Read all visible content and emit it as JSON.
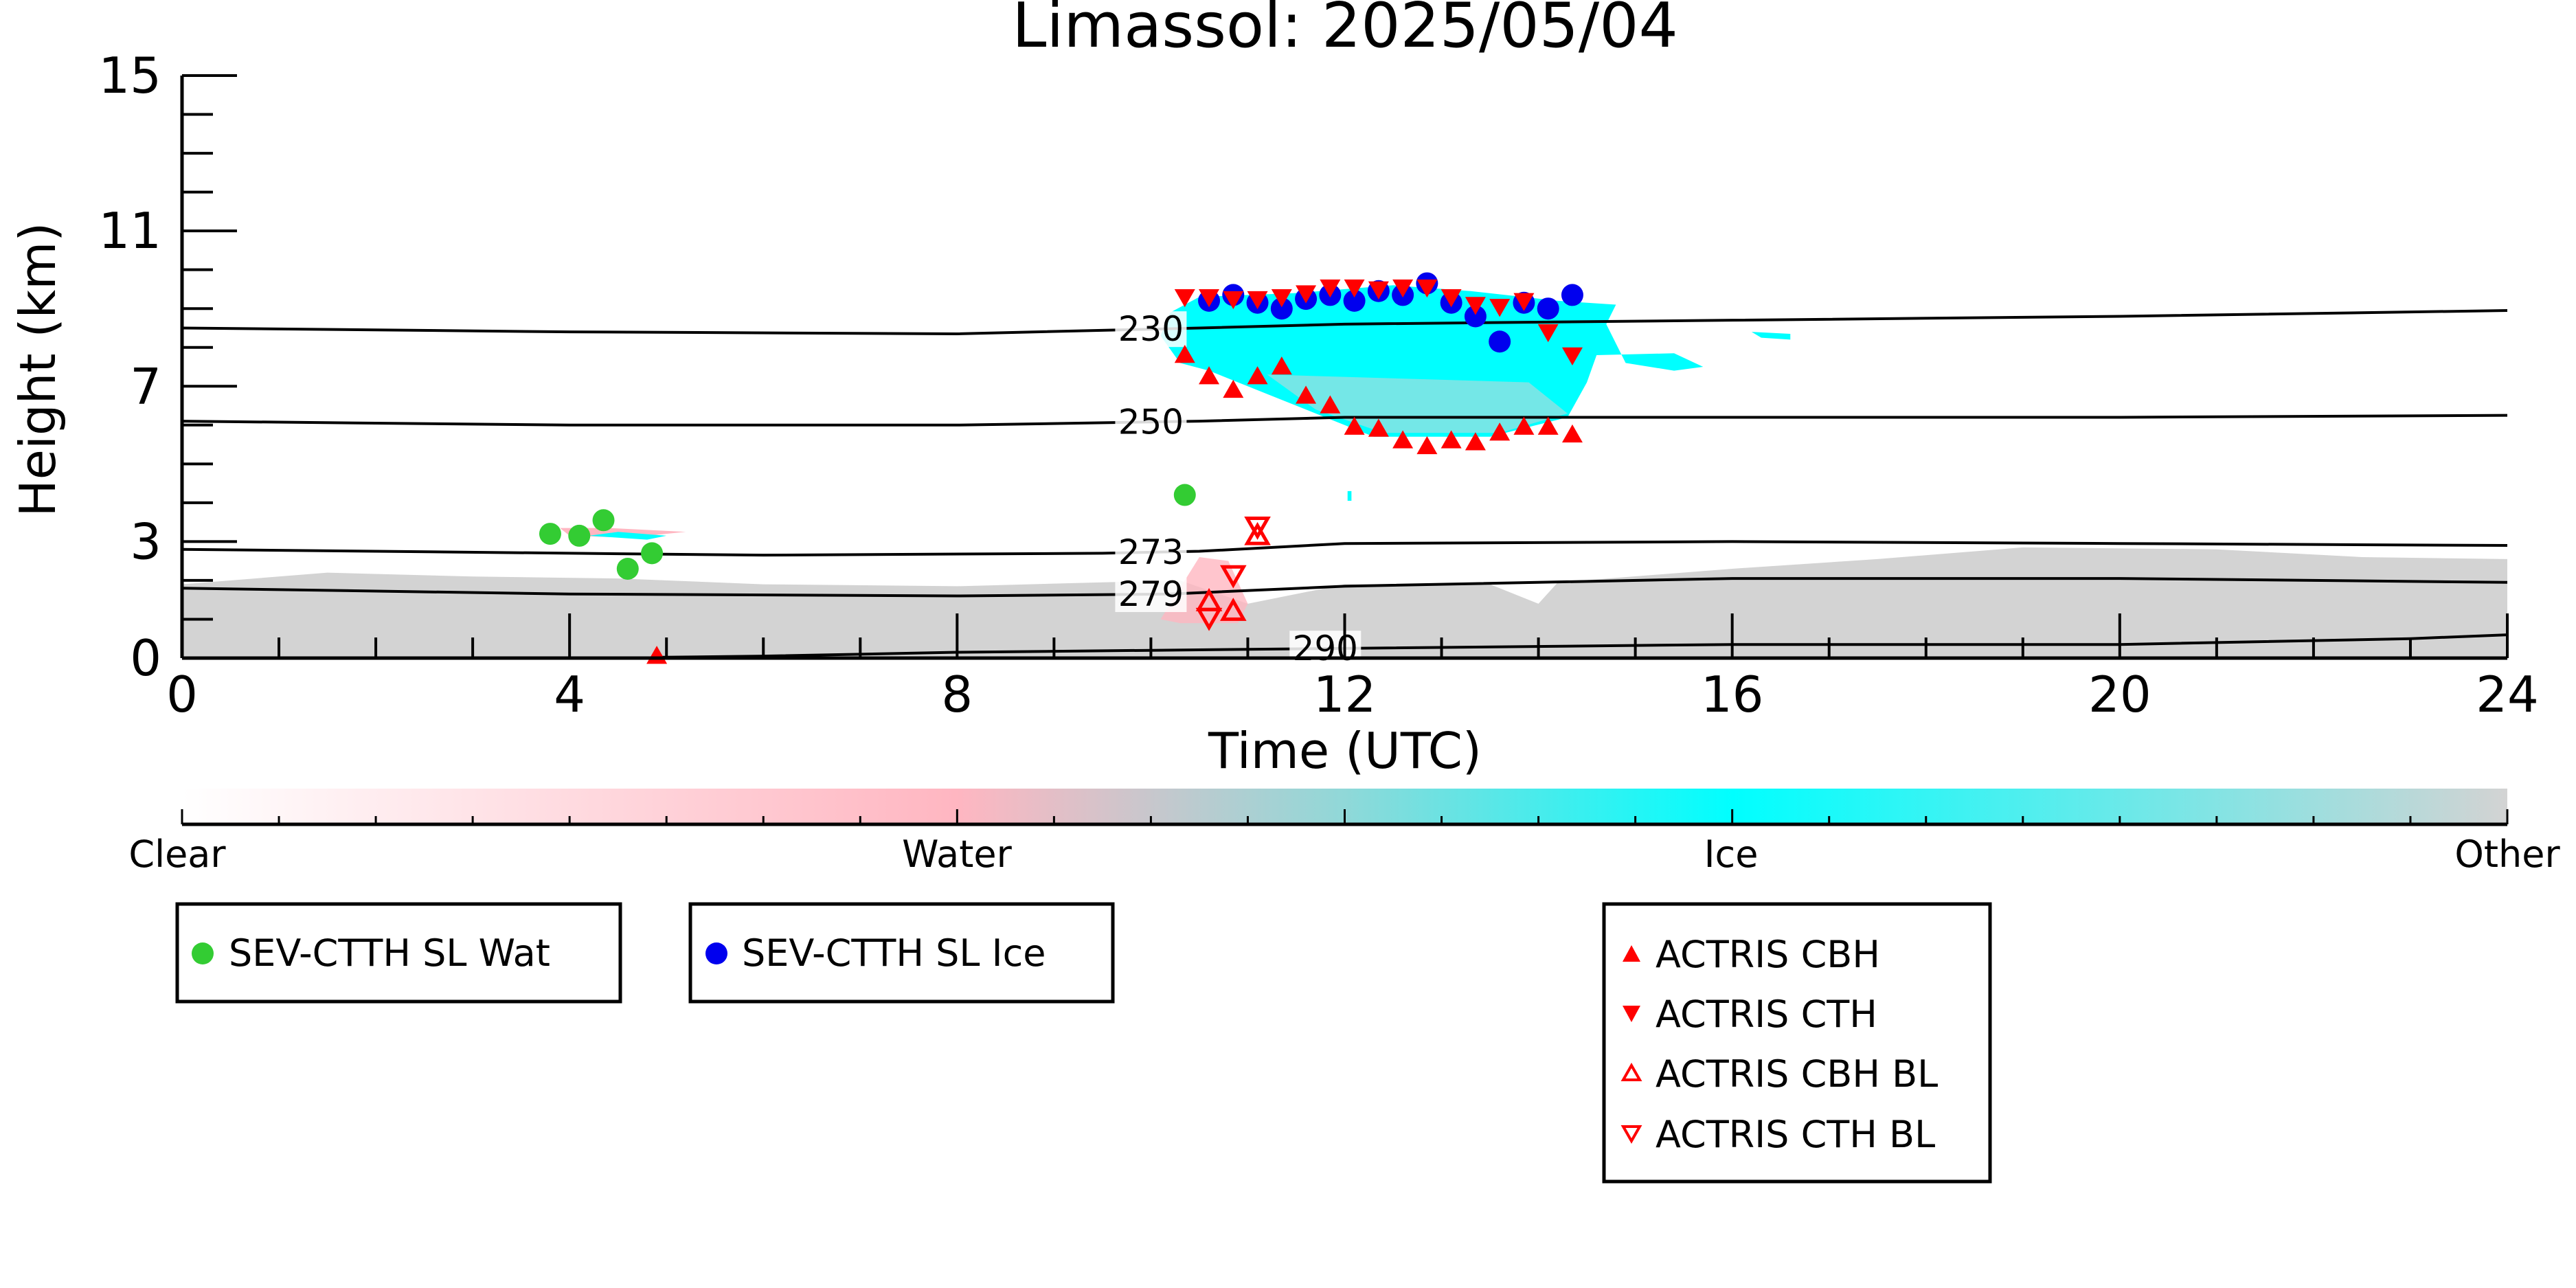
{
  "chart_data": {
    "type": "scatter",
    "title": "Limassol: 2025/05/04",
    "xlabel": "Time (UTC)",
    "ylabel": "Height (km)",
    "xlim": [
      0,
      24
    ],
    "ylim": [
      0,
      15
    ],
    "x_ticks": [
      0,
      4,
      8,
      12,
      16,
      20,
      24
    ],
    "y_ticks": [
      0,
      3,
      7,
      11,
      15
    ],
    "x_tick_labels": [
      "0",
      "4",
      "8",
      "12",
      "16",
      "20",
      "24"
    ],
    "y_tick_labels": [
      "0",
      "3",
      "7",
      "11",
      "15"
    ],
    "colors": {
      "water_marker": "#33cc33",
      "ice_marker": "#0000ee",
      "actris": "#ff0000",
      "clear": "#ffffff",
      "water": "#ffb6c1",
      "ice": "#00ffff",
      "other": "#d3d3d3"
    },
    "colorbar": {
      "labels": [
        "Clear",
        "Water",
        "Ice",
        "Other"
      ]
    },
    "isotherms": [
      {
        "label": "230",
        "label_x": 10.0,
        "points": [
          [
            0,
            8.5
          ],
          [
            4,
            8.4
          ],
          [
            8,
            8.35
          ],
          [
            10.5,
            8.5
          ],
          [
            12,
            8.6
          ],
          [
            16,
            8.7
          ],
          [
            20,
            8.8
          ],
          [
            24,
            8.95
          ]
        ]
      },
      {
        "label": "250",
        "label_x": 10.0,
        "points": [
          [
            0,
            6.1
          ],
          [
            4,
            6.0
          ],
          [
            8,
            6.0
          ],
          [
            10.5,
            6.1
          ],
          [
            12,
            6.2
          ],
          [
            16,
            6.2
          ],
          [
            20,
            6.2
          ],
          [
            24,
            6.25
          ]
        ]
      },
      {
        "label": "273",
        "label_x": 10.0,
        "points": [
          [
            0,
            2.8
          ],
          [
            2,
            2.75
          ],
          [
            6,
            2.65
          ],
          [
            9.5,
            2.7
          ],
          [
            10.5,
            2.75
          ],
          [
            12,
            2.95
          ],
          [
            16,
            3.0
          ],
          [
            20,
            2.95
          ],
          [
            24,
            2.9
          ]
        ]
      },
      {
        "label": "279",
        "label_x": 10.0,
        "points": [
          [
            0,
            1.8
          ],
          [
            4,
            1.65
          ],
          [
            8,
            1.6
          ],
          [
            10.2,
            1.65
          ],
          [
            12,
            1.85
          ],
          [
            16,
            2.05
          ],
          [
            20,
            2.05
          ],
          [
            24,
            1.95
          ]
        ]
      },
      {
        "label": "290",
        "label_x": 11.8,
        "points": [
          [
            4.9,
            0.02
          ],
          [
            6,
            0.05
          ],
          [
            8,
            0.15
          ],
          [
            10,
            0.2
          ],
          [
            12,
            0.25
          ],
          [
            16,
            0.35
          ],
          [
            20,
            0.35
          ],
          [
            23,
            0.5
          ],
          [
            24,
            0.6
          ]
        ]
      }
    ],
    "series": [
      {
        "name": "SEV-CTTH SL Wat",
        "marker": "circle",
        "color": "#33cc33",
        "points": [
          [
            3.8,
            3.2
          ],
          [
            4.1,
            3.15
          ],
          [
            4.35,
            3.55
          ],
          [
            4.6,
            2.3
          ],
          [
            4.85,
            2.7
          ],
          [
            10.35,
            4.2
          ]
        ]
      },
      {
        "name": "SEV-CTTH SL Ice",
        "marker": "circle",
        "color": "#0000ee",
        "points": [
          [
            10.6,
            9.2
          ],
          [
            10.85,
            9.35
          ],
          [
            11.1,
            9.15
          ],
          [
            11.35,
            9.0
          ],
          [
            11.6,
            9.25
          ],
          [
            11.85,
            9.35
          ],
          [
            12.1,
            9.2
          ],
          [
            12.35,
            9.45
          ],
          [
            12.6,
            9.35
          ],
          [
            12.85,
            9.65
          ],
          [
            13.1,
            9.15
          ],
          [
            13.35,
            8.8
          ],
          [
            13.6,
            8.15
          ],
          [
            13.85,
            9.15
          ],
          [
            14.1,
            9.0
          ],
          [
            14.35,
            9.35
          ]
        ]
      },
      {
        "name": "ACTRIS CBH",
        "marker": "triangle-up",
        "color": "#ff0000",
        "filled": true,
        "points": [
          [
            4.9,
            0.05
          ],
          [
            10.35,
            7.8
          ],
          [
            10.6,
            7.25
          ],
          [
            10.85,
            6.9
          ],
          [
            11.1,
            7.25
          ],
          [
            11.35,
            7.5
          ],
          [
            11.6,
            6.75
          ],
          [
            11.85,
            6.5
          ],
          [
            12.1,
            5.95
          ],
          [
            12.35,
            5.9
          ],
          [
            12.6,
            5.6
          ],
          [
            12.85,
            5.45
          ],
          [
            13.1,
            5.6
          ],
          [
            13.35,
            5.55
          ],
          [
            13.6,
            5.8
          ],
          [
            13.85,
            5.95
          ],
          [
            14.1,
            5.95
          ],
          [
            14.35,
            5.75
          ]
        ]
      },
      {
        "name": "ACTRIS CTH",
        "marker": "triangle-down",
        "color": "#ff0000",
        "filled": true,
        "points": [
          [
            10.35,
            9.3
          ],
          [
            10.6,
            9.3
          ],
          [
            10.85,
            9.25
          ],
          [
            11.1,
            9.25
          ],
          [
            11.35,
            9.3
          ],
          [
            11.6,
            9.4
          ],
          [
            11.85,
            9.55
          ],
          [
            12.1,
            9.55
          ],
          [
            12.35,
            9.5
          ],
          [
            12.6,
            9.55
          ],
          [
            12.85,
            9.55
          ],
          [
            13.1,
            9.3
          ],
          [
            13.35,
            9.1
          ],
          [
            13.6,
            9.05
          ],
          [
            13.85,
            9.2
          ],
          [
            14.1,
            8.4
          ],
          [
            14.35,
            7.8
          ]
        ]
      },
      {
        "name": "ACTRIS CBH BL",
        "marker": "triangle-up",
        "color": "#ff0000",
        "filled": false,
        "points": [
          [
            10.6,
            1.45
          ],
          [
            10.85,
            1.2
          ],
          [
            11.1,
            3.15
          ]
        ]
      },
      {
        "name": "ACTRIS CTH BL",
        "marker": "triangle-down",
        "color": "#ff0000",
        "filled": false,
        "points": [
          [
            10.6,
            1.05
          ],
          [
            10.85,
            2.15
          ],
          [
            11.1,
            3.4
          ]
        ]
      }
    ]
  },
  "legends": {
    "wat": "SEV-CTTH SL Wat",
    "ice": "SEV-CTTH SL Ice",
    "cbh": "ACTRIS CBH",
    "cth": "ACTRIS CTH",
    "cbh_bl": "ACTRIS CBH BL",
    "cth_bl": "ACTRIS CTH BL"
  }
}
